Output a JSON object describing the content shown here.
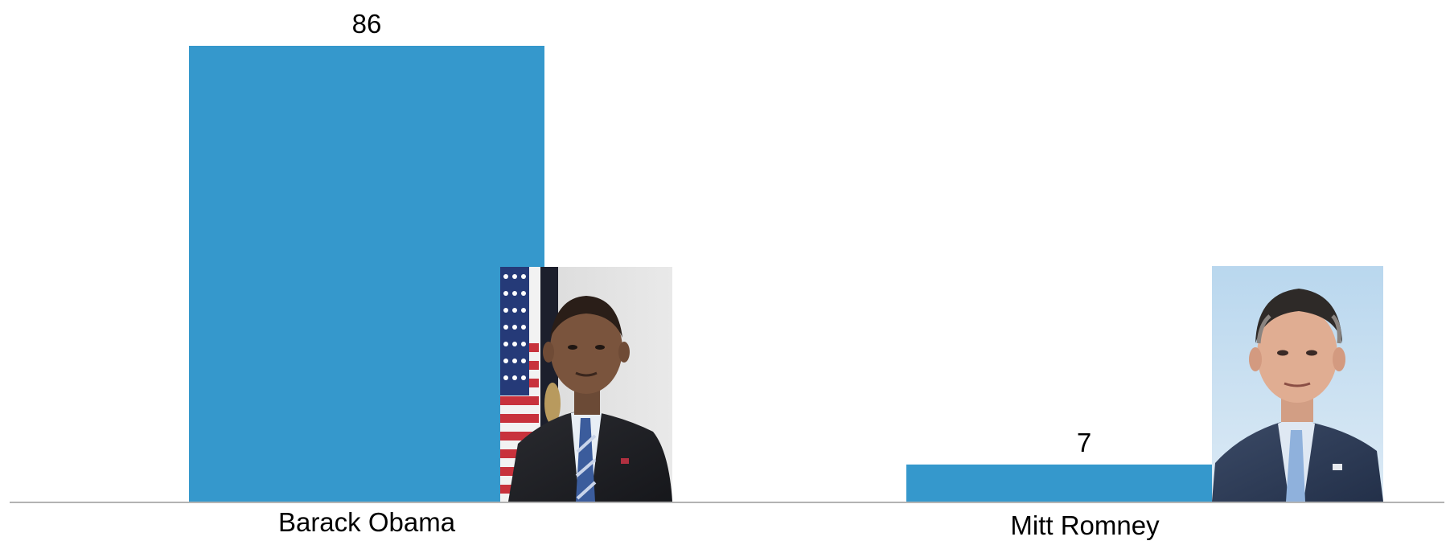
{
  "chart_data": {
    "type": "bar",
    "title": "",
    "xlabel": "",
    "ylabel": "",
    "categories": [
      "Barack Obama",
      "Mitt Romney"
    ],
    "values": [
      86,
      7
    ],
    "data_labels": [
      "86",
      "7"
    ],
    "ylim": [
      0,
      86
    ],
    "grid": false,
    "legend": "none",
    "bar_color": "#3598cc",
    "axis_color": "#b3b3b3"
  },
  "images": [
    {
      "name": "barack-obama-portrait",
      "category": "Barack Obama"
    },
    {
      "name": "mitt-romney-portrait",
      "category": "Mitt Romney"
    }
  ]
}
